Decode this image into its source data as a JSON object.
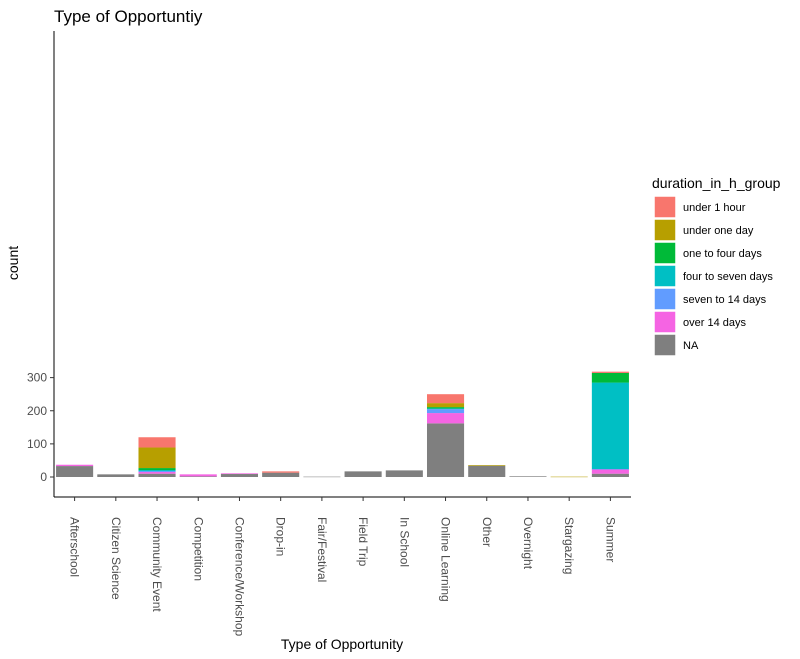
{
  "chart_data": {
    "type": "bar",
    "stacked": true,
    "title": "Type of Opportuntiy",
    "xlabel": "Type of Opportunity",
    "ylabel": "count",
    "ylim": [
      -15,
      333
    ],
    "yticks": [
      0,
      100,
      200,
      300
    ],
    "grid": false,
    "legend_position": "right",
    "legend_title": "duration_in_h_group",
    "categories": [
      "Afterschool",
      "Citizen Science",
      "Community Event",
      "Competition",
      "Conference/Workshop",
      "Drop-in",
      "Fair/Festival",
      "Field Trip",
      "In School",
      "Online Learning",
      "Other",
      "Overnight",
      "Stargazing",
      "Summer"
    ],
    "stack_order": [
      "NA",
      "over 14 days",
      "seven to 14 days",
      "four to seven days",
      "one to four days",
      "under one day",
      "under 1 hour"
    ],
    "series": [
      {
        "name": "under 1 hour",
        "color": "#F8766D",
        "values": [
          0,
          0,
          31,
          0,
          0,
          4,
          0,
          0,
          0,
          27,
          0,
          0,
          0,
          4
        ]
      },
      {
        "name": "under one day",
        "color": "#B79F00",
        "values": [
          0,
          0,
          62,
          0,
          0,
          0,
          0,
          0,
          0,
          12,
          2,
          0,
          1,
          0
        ]
      },
      {
        "name": "one to four days",
        "color": "#00BA38",
        "values": [
          0,
          0,
          6,
          0,
          0,
          0,
          0,
          0,
          0,
          4,
          0,
          0,
          0,
          29
        ]
      },
      {
        "name": "four to seven days",
        "color": "#00BFC4",
        "values": [
          0,
          0,
          3,
          0,
          0,
          0,
          0,
          0,
          0,
          2,
          0,
          0,
          0,
          261
        ]
      },
      {
        "name": "seven to 14 days",
        "color": "#619CFF",
        "values": [
          0,
          0,
          3,
          0,
          0,
          0,
          0,
          0,
          0,
          12,
          0,
          0,
          0,
          1
        ]
      },
      {
        "name": "over 14 days",
        "color": "#F564E3",
        "values": [
          4,
          0,
          5,
          6,
          2,
          0,
          0,
          0,
          0,
          31,
          0,
          0,
          0,
          13
        ]
      },
      {
        "name": "NA",
        "color": "#7F7F7F",
        "values": [
          33,
          8,
          10,
          2,
          9,
          13,
          1,
          17,
          20,
          162,
          34,
          2,
          0,
          10
        ]
      }
    ]
  }
}
